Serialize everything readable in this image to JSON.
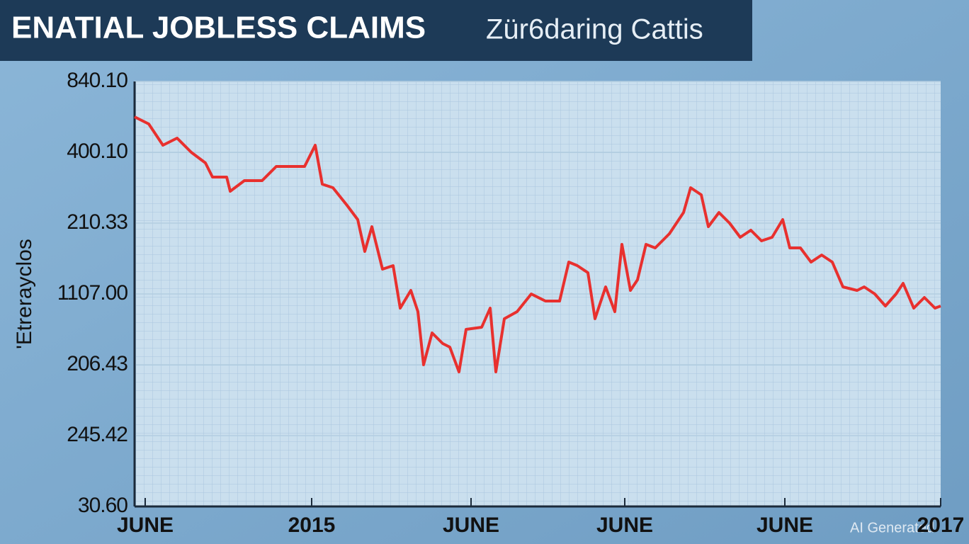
{
  "chart_data": {
    "type": "line",
    "title": "ENATIAL JOBLESS CLAIMS",
    "subtitle": "Zür6daring Cattis",
    "ylabel": "'Etrerayclos",
    "watermark": "AI Generated",
    "color": "#e8302e",
    "grid": true,
    "xlim": [
      0,
      113.8
    ],
    "xticks": [
      {
        "value": 1.5,
        "label": "JUNE"
      },
      {
        "value": 25,
        "label": "2015"
      },
      {
        "value": 47.5,
        "label": "JUNE"
      },
      {
        "value": 69.2,
        "label": "JUNE"
      },
      {
        "value": 91.8,
        "label": "JUNE"
      },
      {
        "value": 113.8,
        "label": "2017"
      }
    ],
    "ylim": [
      0,
      6
    ],
    "yticks": [
      {
        "value": 6,
        "label": "840.10"
      },
      {
        "value": 5,
        "label": "400.10"
      },
      {
        "value": 4,
        "label": "210.33"
      },
      {
        "value": 3,
        "label": "1107.00"
      },
      {
        "value": 2,
        "label": "206.43"
      },
      {
        "value": 1,
        "label": "245.42"
      },
      {
        "value": 0,
        "label": "30.60"
      }
    ],
    "x": [
      0,
      2,
      4,
      6,
      8,
      10,
      11,
      13,
      13.5,
      15.5,
      18,
      20,
      22,
      24,
      25.5,
      26.5,
      28,
      30,
      31.5,
      32.5,
      33.5,
      35,
      36.5,
      37.5,
      39,
      40,
      40.8,
      42,
      43.5,
      44.5,
      45.8,
      46.8,
      49,
      50.2,
      51,
      52.2,
      54,
      56,
      58,
      60,
      61.3,
      62.5,
      64,
      65,
      66.5,
      67.8,
      68.8,
      70,
      71,
      72.2,
      73.5,
      75.5,
      77.5,
      78.5,
      80,
      81,
      82.5,
      84,
      85.5,
      87,
      88.5,
      90,
      91.5,
      92.5,
      94,
      95.5,
      97,
      98.5,
      100,
      102,
      103,
      104.5,
      106,
      107.5,
      108.5,
      110,
      111.5,
      113,
      113.8
    ],
    "values": [
      5.5,
      5.4,
      5.1,
      5.2,
      5.0,
      4.85,
      4.65,
      4.65,
      4.45,
      4.6,
      4.6,
      4.8,
      4.8,
      4.8,
      5.1,
      4.55,
      4.5,
      4.25,
      4.05,
      3.6,
      3.95,
      3.35,
      3.4,
      2.8,
      3.05,
      2.75,
      2.0,
      2.45,
      2.3,
      2.25,
      1.9,
      2.5,
      2.53,
      2.8,
      1.9,
      2.65,
      2.75,
      3.0,
      2.9,
      2.9,
      3.45,
      3.4,
      3.3,
      2.65,
      3.1,
      2.75,
      3.7,
      3.05,
      3.2,
      3.7,
      3.65,
      3.85,
      4.15,
      4.5,
      4.4,
      3.95,
      4.15,
      4.0,
      3.8,
      3.9,
      3.75,
      3.8,
      4.05,
      3.65,
      3.65,
      3.45,
      3.55,
      3.45,
      3.1,
      3.05,
      3.1,
      3.0,
      2.83,
      3.0,
      3.15,
      2.8,
      2.95,
      2.8,
      2.83
    ]
  }
}
